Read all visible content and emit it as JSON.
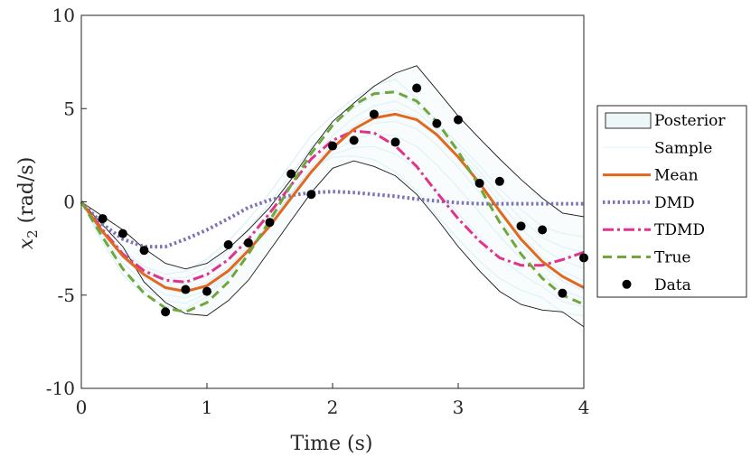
{
  "chart_data": {
    "type": "line",
    "xlabel": "Time (s)",
    "ylabel_symbol": "x",
    "ylabel_subscript": "2",
    "ylabel_unit": "(rad/s)",
    "xlim": [
      0,
      4
    ],
    "ylim": [
      -10,
      10
    ],
    "xticks": [
      0,
      1,
      2,
      3,
      4
    ],
    "xtick_labels": [
      "0",
      "1",
      "2",
      "3",
      "4"
    ],
    "yticks": [
      10,
      5,
      0,
      -5,
      -10
    ],
    "ytick_labels": [
      "10",
      "5",
      "0",
      "-5",
      "-10"
    ],
    "grid": false,
    "legend_position": "outside-right",
    "colors": {
      "posterior_fill": "#eef7f7",
      "posterior_edge": "#1a1a1a",
      "sample": "#8fd4ec",
      "mean": "#e0691f",
      "dmd": "#7b72b8",
      "tdmd": "#e0348a",
      "true": "#6fa83a",
      "data": "#000000"
    },
    "legend": [
      {
        "key": "posterior",
        "label": "Posterior"
      },
      {
        "key": "sample",
        "label": "Sample"
      },
      {
        "key": "mean",
        "label": "Mean"
      },
      {
        "key": "dmd",
        "label": "DMD"
      },
      {
        "key": "tdmd",
        "label": "TDMD"
      },
      {
        "key": "true",
        "label": "True"
      },
      {
        "key": "data",
        "label": "Data"
      }
    ],
    "posterior_upper": {
      "x": [
        0,
        0.33,
        0.5,
        0.67,
        0.83,
        1.0,
        1.17,
        1.33,
        1.5,
        1.67,
        1.83,
        2.0,
        2.17,
        2.33,
        2.5,
        2.67,
        2.83,
        3.0,
        3.17,
        3.33,
        3.5,
        3.67,
        3.83,
        4.0
      ],
      "y": [
        0,
        -1.5,
        -2.5,
        -3.3,
        -3.6,
        -3.3,
        -2.5,
        -1.5,
        -0.3,
        1.2,
        2.8,
        4.3,
        5.3,
        6.2,
        6.9,
        7.3,
        6.0,
        4.6,
        3.4,
        2.3,
        1.2,
        0.2,
        -0.6,
        -0.8
      ]
    },
    "posterior_lower": {
      "x": [
        0,
        0.33,
        0.5,
        0.67,
        0.83,
        1.0,
        1.17,
        1.33,
        1.5,
        1.67,
        1.83,
        2.0,
        2.17,
        2.33,
        2.5,
        2.67,
        2.83,
        3.0,
        3.17,
        3.33,
        3.5,
        3.67,
        3.83,
        4.0
      ],
      "y": [
        0,
        -2.4,
        -4.3,
        -5.4,
        -6.0,
        -6.1,
        -5.3,
        -4.2,
        -2.6,
        -1.0,
        0.5,
        1.8,
        2.2,
        1.9,
        1.4,
        0.4,
        -0.9,
        -2.4,
        -3.7,
        -4.8,
        -5.5,
        -5.8,
        -5.9,
        -6.7
      ]
    },
    "series": [
      {
        "name": "Mean",
        "x": [
          0,
          0.17,
          0.33,
          0.5,
          0.67,
          0.83,
          1.0,
          1.17,
          1.33,
          1.5,
          1.67,
          1.83,
          2.0,
          2.17,
          2.33,
          2.5,
          2.67,
          2.83,
          3.0,
          3.17,
          3.33,
          3.5,
          3.67,
          3.83,
          4.0
        ],
        "y": [
          0,
          -1.6,
          -2.9,
          -3.9,
          -4.6,
          -4.8,
          -4.5,
          -3.7,
          -2.6,
          -1.3,
          0.2,
          1.6,
          2.9,
          3.9,
          4.5,
          4.7,
          4.4,
          3.6,
          2.4,
          1.0,
          -0.5,
          -2.0,
          -3.2,
          -4.0,
          -4.6
        ]
      },
      {
        "name": "DMD",
        "x": [
          0,
          0.17,
          0.33,
          0.5,
          0.67,
          0.83,
          1.0,
          1.17,
          1.33,
          1.5,
          1.67,
          1.83,
          2.0,
          2.17,
          2.33,
          2.5,
          2.67,
          2.83,
          3.0,
          3.17,
          3.33,
          3.5,
          3.67,
          3.83,
          4.0
        ],
        "y": [
          0,
          -1.2,
          -2.0,
          -2.4,
          -2.4,
          -2.0,
          -1.5,
          -0.9,
          -0.3,
          0.1,
          0.35,
          0.5,
          0.55,
          0.5,
          0.4,
          0.3,
          0.15,
          0.05,
          -0.05,
          -0.1,
          -0.1,
          -0.1,
          -0.1,
          -0.1,
          -0.1
        ]
      },
      {
        "name": "TDMD",
        "x": [
          0,
          0.17,
          0.33,
          0.5,
          0.67,
          0.83,
          1.0,
          1.17,
          1.33,
          1.5,
          1.67,
          1.83,
          2.0,
          2.17,
          2.33,
          2.5,
          2.67,
          2.83,
          3.0,
          3.17,
          3.33,
          3.5,
          3.67,
          3.83,
          4.0
        ],
        "y": [
          0,
          -1.5,
          -2.8,
          -3.7,
          -4.2,
          -4.3,
          -3.9,
          -3.1,
          -2.0,
          -0.6,
          0.9,
          2.3,
          3.3,
          3.8,
          3.7,
          3.0,
          1.9,
          0.5,
          -0.9,
          -2.1,
          -3.0,
          -3.4,
          -3.4,
          -3.1,
          -2.7
        ]
      },
      {
        "name": "True",
        "x": [
          0,
          0.17,
          0.33,
          0.5,
          0.67,
          0.83,
          1.0,
          1.17,
          1.33,
          1.5,
          1.67,
          1.83,
          2.0,
          2.17,
          2.33,
          2.5,
          2.67,
          2.83,
          3.0,
          3.17,
          3.33,
          3.5,
          3.67,
          3.83,
          4.0
        ],
        "y": [
          0,
          -1.9,
          -3.6,
          -4.9,
          -5.7,
          -5.9,
          -5.4,
          -4.3,
          -2.8,
          -1.0,
          0.9,
          2.6,
          4.1,
          5.2,
          5.8,
          5.9,
          5.4,
          4.3,
          2.7,
          0.8,
          -1.1,
          -2.8,
          -4.1,
          -5.0,
          -5.5
        ]
      }
    ],
    "data_points": {
      "x": [
        0.17,
        0.33,
        0.5,
        0.67,
        0.83,
        1.0,
        1.17,
        1.33,
        1.5,
        1.67,
        1.83,
        2.0,
        2.17,
        2.33,
        2.5,
        2.67,
        2.83,
        3.0,
        3.17,
        3.33,
        3.5,
        3.67,
        3.83,
        4.0
      ],
      "y": [
        -0.9,
        -1.7,
        -2.6,
        -5.9,
        -4.7,
        -4.8,
        -2.3,
        -2.2,
        -1.1,
        1.5,
        0.4,
        3.0,
        3.3,
        4.7,
        3.2,
        6.1,
        4.2,
        4.4,
        1.0,
        1.1,
        -1.3,
        -1.5,
        -4.9,
        -3.0
      ]
    }
  }
}
